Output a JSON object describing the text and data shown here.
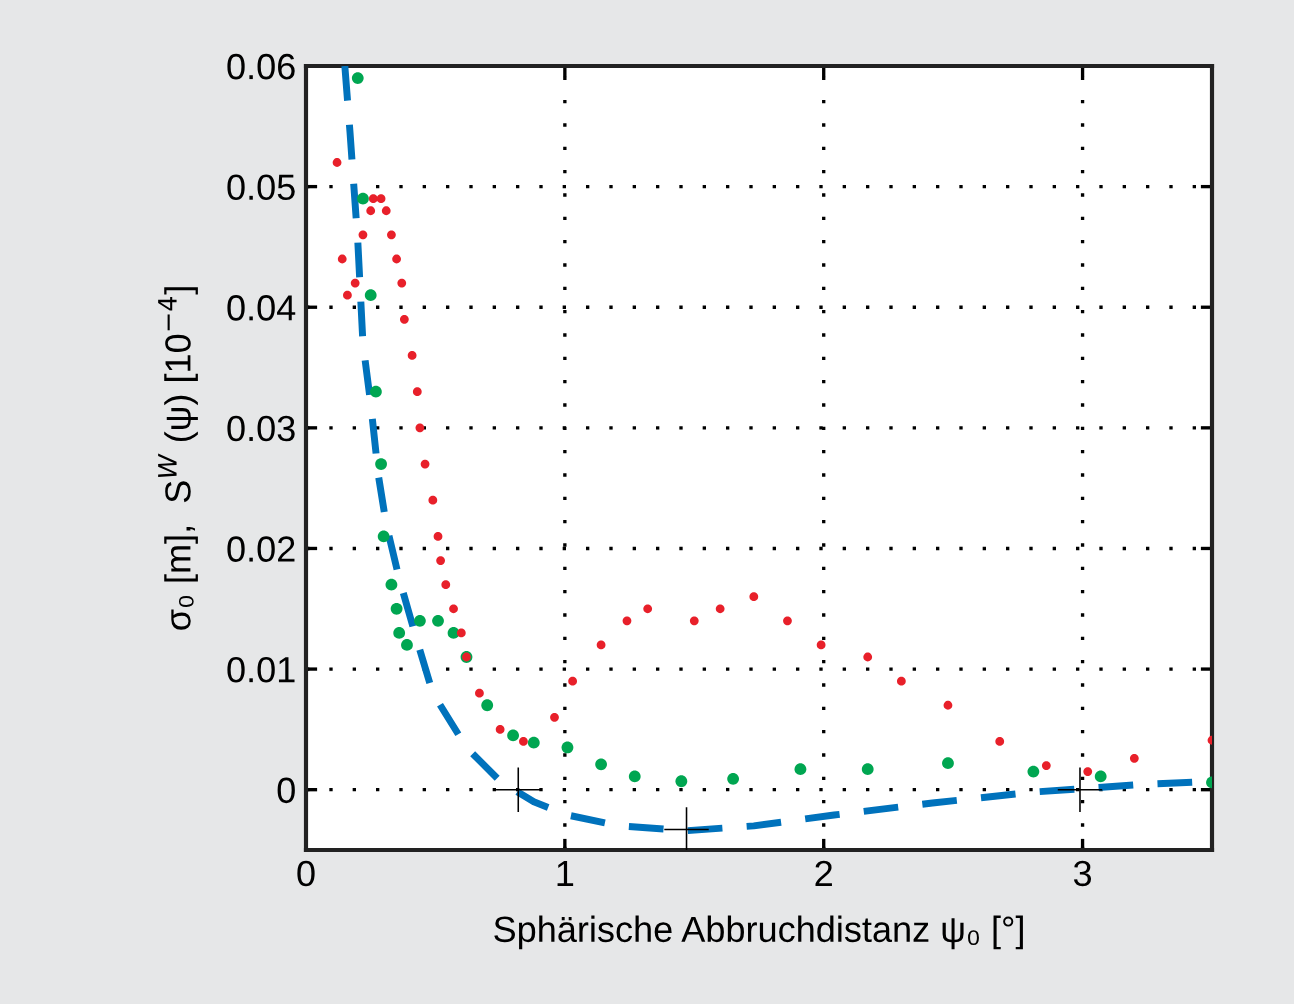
{
  "chart_data": {
    "type": "scatter",
    "xlabel": "Sphärische Abbruchdistanz ψ₀ [°]",
    "ylabel": "σ₀ [m],  S$^{W}$ (ψ) [10$^{−4}$]",
    "xlim": [
      0,
      3.5
    ],
    "ylim": [
      -0.005,
      0.06
    ],
    "xticks": [
      0,
      1,
      2,
      3
    ],
    "yticks": [
      0,
      0.01,
      0.02,
      0.03,
      0.04,
      0.05,
      0.06
    ],
    "grid": true,
    "series": [
      {
        "marker": "circle",
        "color": "#e8202a",
        "x": [
          0.12,
          0.14,
          0.16,
          0.19,
          0.22,
          0.25,
          0.26,
          0.29,
          0.31,
          0.33,
          0.35,
          0.37,
          0.38,
          0.41,
          0.43,
          0.44,
          0.46,
          0.49,
          0.51,
          0.52,
          0.54,
          0.57,
          0.6,
          0.62,
          0.67,
          0.75,
          0.84,
          0.96,
          1.03,
          1.14,
          1.24,
          1.32,
          1.5,
          1.6,
          1.73,
          1.86,
          1.99,
          2.17,
          2.3,
          2.48,
          2.68,
          2.86,
          3.02,
          3.2,
          3.5
        ],
        "values": [
          0.052,
          0.044,
          0.041,
          0.042,
          0.046,
          0.048,
          0.049,
          0.049,
          0.048,
          0.046,
          0.044,
          0.042,
          0.039,
          0.036,
          0.033,
          0.03,
          0.027,
          0.024,
          0.021,
          0.019,
          0.017,
          0.015,
          0.013,
          0.011,
          0.008,
          0.005,
          0.004,
          0.006,
          0.009,
          0.012,
          0.014,
          0.015,
          0.014,
          0.015,
          0.016,
          0.014,
          0.012,
          0.011,
          0.009,
          0.007,
          0.004,
          0.002,
          0.0015,
          0.0026,
          0.0041
        ]
      },
      {
        "marker": "circle",
        "color": "#00a651",
        "x": [
          0.2,
          0.22,
          0.25,
          0.27,
          0.29,
          0.3,
          0.33,
          0.35,
          0.36,
          0.39,
          0.44,
          0.51,
          0.57,
          0.62,
          0.7,
          0.8,
          0.88,
          1.01,
          1.14,
          1.27,
          1.45,
          1.65,
          1.91,
          2.17,
          2.48,
          2.81,
          3.07,
          3.5
        ],
        "values": [
          0.059,
          0.049,
          0.041,
          0.033,
          0.027,
          0.021,
          0.017,
          0.015,
          0.013,
          0.012,
          0.014,
          0.014,
          0.013,
          0.011,
          0.007,
          0.0045,
          0.0039,
          0.0035,
          0.0021,
          0.0011,
          0.0007,
          0.0009,
          0.0017,
          0.0017,
          0.0022,
          0.0015,
          0.0011,
          0.0006
        ]
      },
      {
        "type": "line",
        "line_style": "dashed",
        "color": "#0072bc",
        "x": [
          0.15,
          0.17,
          0.2,
          0.22,
          0.25,
          0.28,
          0.31,
          0.36,
          0.42,
          0.49,
          0.62,
          0.75,
          0.88,
          1.01,
          1.21,
          1.47,
          1.73,
          2.04,
          2.42,
          2.81,
          3.2,
          3.5
        ],
        "values": [
          0.06,
          0.0545,
          0.0455,
          0.037,
          0.032,
          0.026,
          0.022,
          0.0175,
          0.013,
          0.008,
          0.0035,
          0.0007,
          -0.001,
          -0.0021,
          -0.003,
          -0.0034,
          -0.003,
          -0.0021,
          -0.0011,
          -0.0002,
          0.0004,
          0.0007
        ]
      },
      {
        "marker": "cross",
        "color": "#000000",
        "x": [
          0.82,
          1.47,
          2.99
        ],
        "values": [
          0,
          -0.0033,
          0
        ]
      }
    ]
  }
}
